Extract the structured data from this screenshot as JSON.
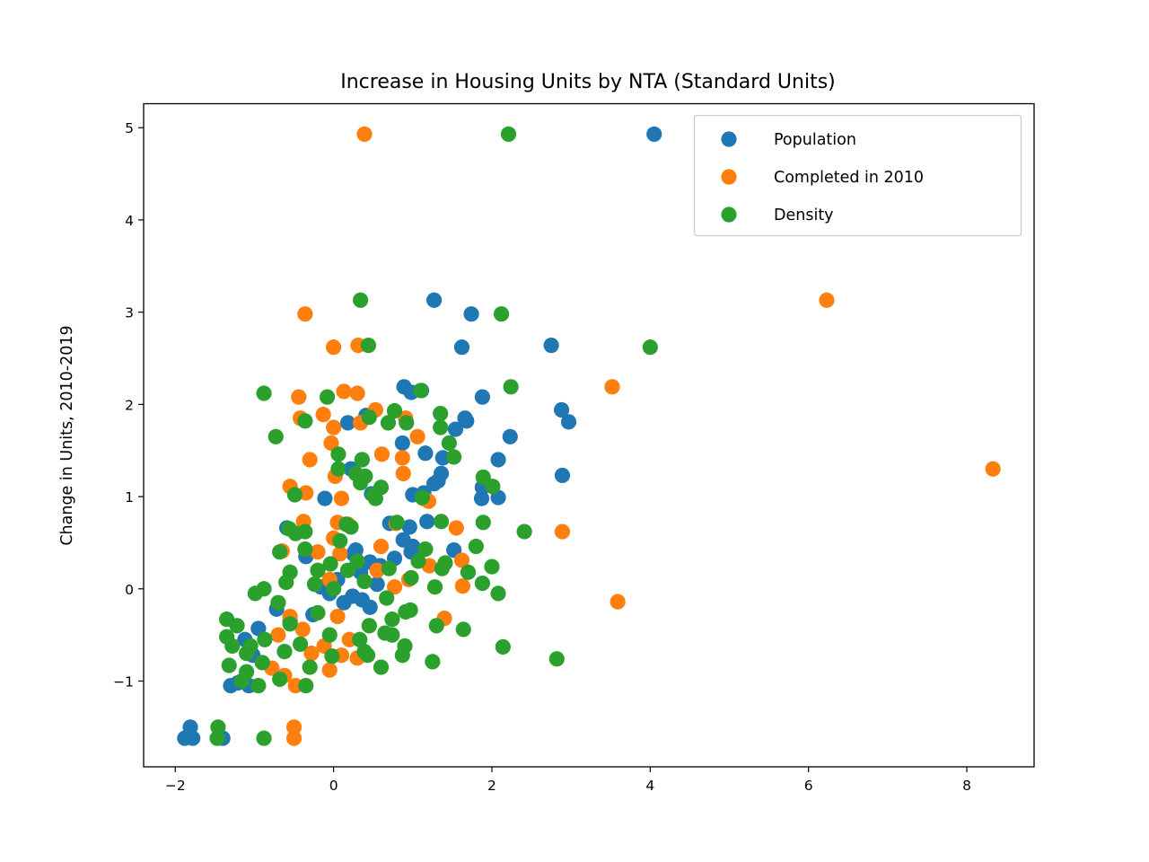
{
  "chart_data": {
    "type": "scatter",
    "title": "Increase in Housing Units by NTA (Standard Units)",
    "xlabel": "",
    "ylabel": "Change in Units, 2010-2019",
    "xlim": [
      -2.4,
      8.85
    ],
    "ylim": [
      -1.93,
      5.26
    ],
    "xticks": [
      -2,
      0,
      2,
      4,
      6,
      8
    ],
    "yticks": [
      -1,
      0,
      1,
      2,
      3,
      4,
      5
    ],
    "xtick_labels": [
      "−2",
      "0",
      "2",
      "4",
      "6",
      "8"
    ],
    "ytick_labels": [
      "−1",
      "0",
      "1",
      "2",
      "3",
      "4",
      "5"
    ],
    "grid": false,
    "legend": "top-right",
    "series": [
      {
        "name": "Population",
        "color": "#1f77b4",
        "points": [
          [
            4.05,
            4.93
          ],
          [
            1.27,
            3.13
          ],
          [
            1.74,
            2.98
          ],
          [
            1.62,
            2.62
          ],
          [
            2.75,
            2.64
          ],
          [
            0.89,
            2.19
          ],
          [
            0.98,
            2.13
          ],
          [
            1.11,
            2.15
          ],
          [
            1.88,
            2.08
          ],
          [
            2.88,
            1.94
          ],
          [
            2.97,
            1.81
          ],
          [
            0.41,
            1.88
          ],
          [
            1.66,
            1.85
          ],
          [
            1.68,
            1.82
          ],
          [
            0.18,
            1.8
          ],
          [
            2.23,
            1.65
          ],
          [
            1.54,
            1.73
          ],
          [
            0.87,
            1.58
          ],
          [
            1.16,
            1.47
          ],
          [
            0.36,
            1.4
          ],
          [
            1.38,
            1.42
          ],
          [
            2.08,
            1.4
          ],
          [
            1.36,
            1.25
          ],
          [
            0.22,
            1.3
          ],
          [
            2.89,
            1.23
          ],
          [
            1.32,
            1.17
          ],
          [
            1.27,
            1.14
          ],
          [
            1.88,
            1.1
          ],
          [
            1.87,
            0.98
          ],
          [
            2.08,
            0.99
          ],
          [
            1.0,
            1.02
          ],
          [
            1.14,
            1.04
          ],
          [
            0.48,
            1.03
          ],
          [
            -0.11,
            0.98
          ],
          [
            -0.59,
            0.66
          ],
          [
            0.71,
            0.71
          ],
          [
            1.18,
            0.73
          ],
          [
            0.96,
            0.67
          ],
          [
            0.88,
            0.53
          ],
          [
            1.52,
            0.42
          ],
          [
            1.0,
            0.46
          ],
          [
            0.77,
            0.33
          ],
          [
            0.25,
            0.38
          ],
          [
            0.46,
            0.29
          ],
          [
            0.59,
            0.25
          ],
          [
            0.34,
            0.18
          ],
          [
            0.05,
            0.1
          ],
          [
            0.55,
            0.05
          ],
          [
            -0.16,
            0.02
          ],
          [
            -0.05,
            -0.05
          ],
          [
            0.24,
            -0.08
          ],
          [
            0.36,
            -0.12
          ],
          [
            0.46,
            -0.2
          ],
          [
            0.13,
            -0.15
          ],
          [
            -0.26,
            -0.28
          ],
          [
            -0.55,
            -0.35
          ],
          [
            -0.72,
            -0.22
          ],
          [
            -0.95,
            -0.43
          ],
          [
            -1.12,
            -0.55
          ],
          [
            -1.02,
            -0.72
          ],
          [
            -1.21,
            -1.02
          ],
          [
            -1.07,
            -1.05
          ],
          [
            -1.3,
            -1.05
          ],
          [
            -1.81,
            -1.5
          ],
          [
            -1.88,
            -1.62
          ],
          [
            -1.78,
            -1.62
          ],
          [
            -1.4,
            -1.62
          ],
          [
            0.98,
            0.4
          ],
          [
            0.28,
            0.42
          ],
          [
            -0.35,
            0.35
          ]
        ]
      },
      {
        "name": "Completed in 2010",
        "color": "#ff7f0e",
        "points": [
          [
            0.39,
            4.93
          ],
          [
            6.23,
            3.13
          ],
          [
            -0.36,
            2.98
          ],
          [
            0.0,
            2.62
          ],
          [
            0.31,
            2.64
          ],
          [
            3.52,
            2.19
          ],
          [
            0.13,
            2.14
          ],
          [
            0.3,
            2.12
          ],
          [
            -0.44,
            2.08
          ],
          [
            -0.42,
            1.85
          ],
          [
            -0.13,
            1.89
          ],
          [
            0.53,
            1.94
          ],
          [
            0.91,
            1.85
          ],
          [
            0.34,
            1.8
          ],
          [
            0.0,
            1.75
          ],
          [
            1.06,
            1.65
          ],
          [
            -0.03,
            1.58
          ],
          [
            -0.3,
            1.4
          ],
          [
            0.61,
            1.46
          ],
          [
            0.87,
            1.42
          ],
          [
            0.88,
            1.25
          ],
          [
            0.02,
            1.22
          ],
          [
            8.33,
            1.3
          ],
          [
            -0.55,
            1.11
          ],
          [
            -0.35,
            1.04
          ],
          [
            0.1,
            0.98
          ],
          [
            1.13,
            0.98
          ],
          [
            1.2,
            0.95
          ],
          [
            -0.38,
            0.73
          ],
          [
            0.05,
            0.72
          ],
          [
            0.18,
            0.7
          ],
          [
            0.79,
            0.71
          ],
          [
            1.55,
            0.66
          ],
          [
            2.89,
            0.62
          ],
          [
            -0.65,
            0.41
          ],
          [
            0.0,
            0.55
          ],
          [
            0.6,
            0.46
          ],
          [
            0.08,
            0.38
          ],
          [
            -0.2,
            0.4
          ],
          [
            1.21,
            0.25
          ],
          [
            1.62,
            0.31
          ],
          [
            0.55,
            0.2
          ],
          [
            -0.05,
            0.1
          ],
          [
            0.77,
            0.02
          ],
          [
            1.63,
            0.03
          ],
          [
            3.59,
            -0.14
          ],
          [
            1.4,
            -0.32
          ],
          [
            0.05,
            -0.3
          ],
          [
            -0.55,
            -0.3
          ],
          [
            -0.39,
            -0.44
          ],
          [
            0.2,
            -0.55
          ],
          [
            -0.12,
            -0.62
          ],
          [
            0.1,
            -0.72
          ],
          [
            0.3,
            -0.75
          ],
          [
            -0.05,
            -0.88
          ],
          [
            -0.48,
            -1.05
          ],
          [
            -0.78,
            -0.86
          ],
          [
            -0.62,
            -0.94
          ],
          [
            -0.5,
            -1.5
          ],
          [
            -0.5,
            -1.62
          ],
          [
            -0.28,
            -0.7
          ],
          [
            0.45,
            -0.4
          ],
          [
            0.95,
            0.1
          ],
          [
            -0.7,
            -0.5
          ]
        ]
      },
      {
        "name": "Density",
        "color": "#2ca02c",
        "points": [
          [
            2.21,
            4.93
          ],
          [
            0.34,
            3.13
          ],
          [
            2.12,
            2.98
          ],
          [
            0.44,
            2.64
          ],
          [
            4.0,
            2.62
          ],
          [
            -0.88,
            2.12
          ],
          [
            -0.08,
            2.08
          ],
          [
            1.1,
            2.15
          ],
          [
            2.24,
            2.19
          ],
          [
            -0.36,
            1.82
          ],
          [
            0.45,
            1.86
          ],
          [
            0.69,
            1.8
          ],
          [
            0.77,
            1.93
          ],
          [
            0.92,
            1.8
          ],
          [
            1.35,
            1.75
          ],
          [
            1.35,
            1.9
          ],
          [
            1.46,
            1.58
          ],
          [
            -0.73,
            1.65
          ],
          [
            0.06,
            1.46
          ],
          [
            0.36,
            1.4
          ],
          [
            1.52,
            1.43
          ],
          [
            0.06,
            1.3
          ],
          [
            0.28,
            1.25
          ],
          [
            0.4,
            1.22
          ],
          [
            0.34,
            1.15
          ],
          [
            1.89,
            1.21
          ],
          [
            2.01,
            1.11
          ],
          [
            0.6,
            1.1
          ],
          [
            -0.49,
            1.02
          ],
          [
            0.5,
            1.02
          ],
          [
            0.53,
            0.98
          ],
          [
            1.12,
            0.99
          ],
          [
            -0.56,
            0.65
          ],
          [
            -0.36,
            0.62
          ],
          [
            0.16,
            0.7
          ],
          [
            0.08,
            0.52
          ],
          [
            0.22,
            0.67
          ],
          [
            0.8,
            0.72
          ],
          [
            1.36,
            0.73
          ],
          [
            1.89,
            0.72
          ],
          [
            2.41,
            0.62
          ],
          [
            -0.68,
            0.4
          ],
          [
            -0.36,
            0.43
          ],
          [
            1.16,
            0.43
          ],
          [
            1.8,
            0.46
          ],
          [
            1.07,
            0.3
          ],
          [
            1.41,
            0.28
          ],
          [
            2.0,
            0.24
          ],
          [
            0.7,
            0.22
          ],
          [
            0.3,
            0.3
          ],
          [
            1.7,
            0.18
          ],
          [
            -0.04,
            0.27
          ],
          [
            1.37,
            0.22
          ],
          [
            -0.55,
            0.18
          ],
          [
            0.98,
            0.12
          ],
          [
            1.88,
            0.06
          ],
          [
            1.28,
            0.02
          ],
          [
            0.39,
            0.08
          ],
          [
            -0.6,
            0.07
          ],
          [
            -0.24,
            0.05
          ],
          [
            2.08,
            -0.05
          ],
          [
            0.67,
            -0.1
          ],
          [
            -0.99,
            -0.05
          ],
          [
            -0.88,
            0.0
          ],
          [
            0.0,
            0.0
          ],
          [
            -0.7,
            -0.15
          ],
          [
            0.97,
            -0.23
          ],
          [
            0.91,
            -0.25
          ],
          [
            -0.2,
            -0.26
          ],
          [
            -1.35,
            -0.33
          ],
          [
            0.74,
            -0.33
          ],
          [
            1.3,
            -0.4
          ],
          [
            1.64,
            -0.44
          ],
          [
            -1.22,
            -0.4
          ],
          [
            0.45,
            -0.4
          ],
          [
            -0.55,
            -0.38
          ],
          [
            -1.35,
            -0.52
          ],
          [
            -0.05,
            -0.5
          ],
          [
            0.33,
            -0.55
          ],
          [
            0.65,
            -0.48
          ],
          [
            0.74,
            -0.5
          ],
          [
            -0.87,
            -0.55
          ],
          [
            -1.28,
            -0.62
          ],
          [
            -1.05,
            -0.62
          ],
          [
            2.14,
            -0.63
          ],
          [
            0.9,
            -0.62
          ],
          [
            0.39,
            -0.68
          ],
          [
            -0.62,
            -0.68
          ],
          [
            0.43,
            -0.72
          ],
          [
            0.87,
            -0.72
          ],
          [
            -0.02,
            -0.73
          ],
          [
            2.82,
            -0.76
          ],
          [
            1.25,
            -0.79
          ],
          [
            -1.32,
            -0.83
          ],
          [
            -0.9,
            -0.8
          ],
          [
            0.6,
            -0.85
          ],
          [
            -0.3,
            -0.85
          ],
          [
            -1.1,
            -0.9
          ],
          [
            -0.68,
            -0.98
          ],
          [
            -1.16,
            -1.0
          ],
          [
            -0.95,
            -1.05
          ],
          [
            -0.35,
            -1.05
          ],
          [
            -1.46,
            -1.5
          ],
          [
            -1.47,
            -1.62
          ],
          [
            -0.88,
            -1.62
          ],
          [
            -0.42,
            -0.6
          ],
          [
            -1.1,
            -0.7
          ],
          [
            -0.2,
            0.2
          ],
          [
            0.18,
            0.2
          ],
          [
            -0.48,
            0.6
          ]
        ]
      }
    ]
  }
}
